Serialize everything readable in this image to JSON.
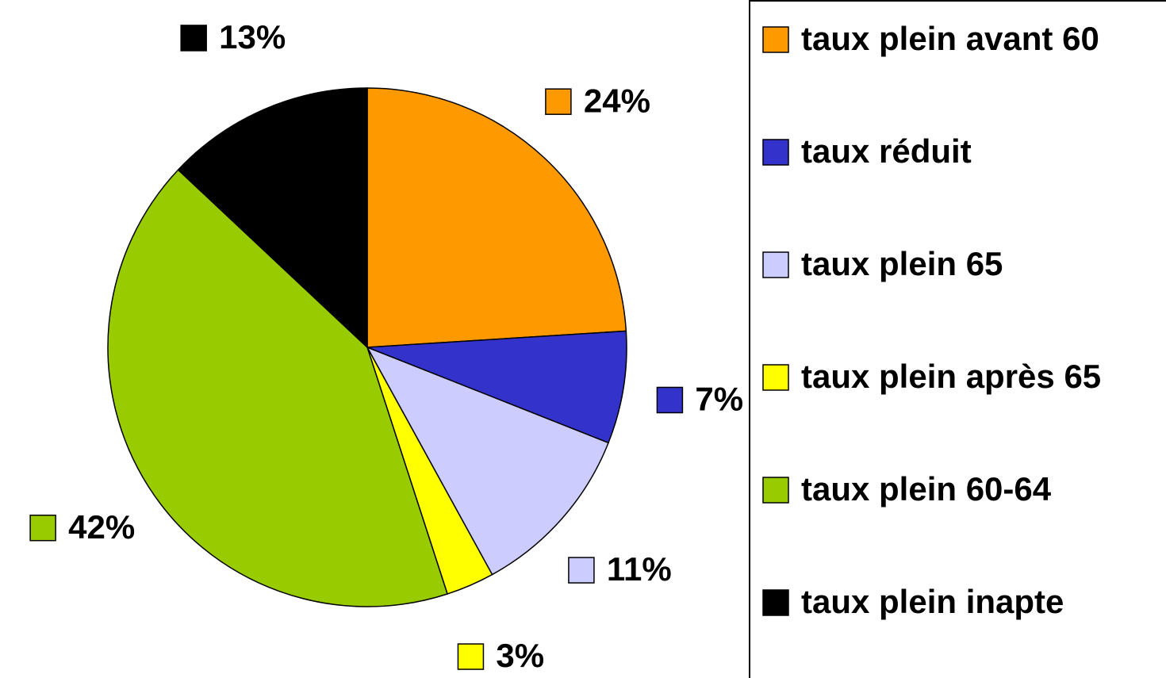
{
  "chart_data": {
    "type": "pie",
    "categories": [
      "taux plein avant 60",
      "taux réduit",
      "taux plein 65",
      "taux plein après 65",
      "taux plein 60-64",
      "taux plein inapte"
    ],
    "values": [
      24,
      7,
      11,
      3,
      42,
      13
    ],
    "value_labels": [
      "24%",
      "7%",
      "11%",
      "3%",
      "42%",
      "13%"
    ],
    "colors": [
      "#ff9900",
      "#3333cc",
      "#ccccff",
      "#ffff00",
      "#99cc00",
      "#000000"
    ],
    "legend": "right"
  }
}
